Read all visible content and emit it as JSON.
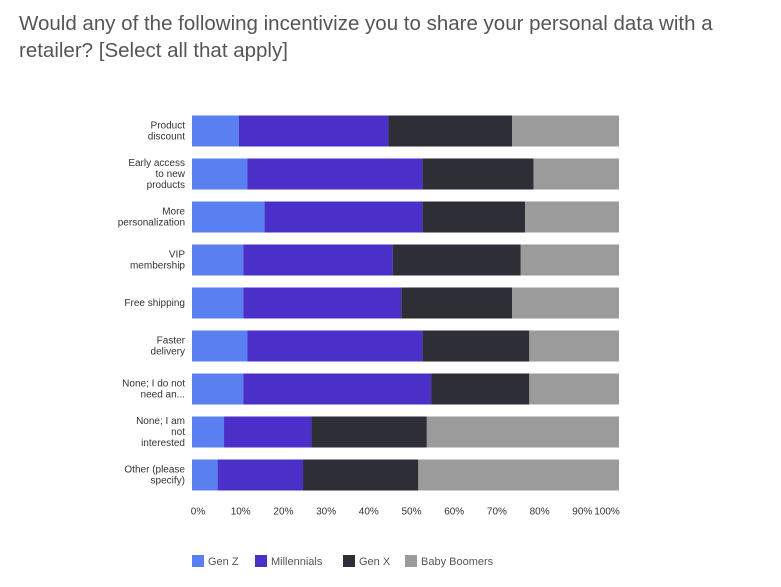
{
  "chart_data": {
    "type": "stacked_barh",
    "title": "Would any of the following incentivize you to share your personal data with a retailer? [Select all that apply]",
    "categories": [
      "Product\ndiscount",
      "Early access\nto new\nproducts",
      "More\npersonalization",
      "VIP\nmembership",
      "Free shipping",
      "Faster\ndelivery",
      "None; I do not\nneed an...",
      "None; I am\nnot\ninterested",
      "Other (please\nspecify)"
    ],
    "series": [
      {
        "name": "Gen Z",
        "color": "#5a7ff0",
        "values": [
          11,
          13,
          17,
          12,
          12,
          13,
          12,
          7.5,
          6
        ]
      },
      {
        "name": "Millennials",
        "color": "#4a2fc8",
        "values": [
          35,
          41,
          37,
          35,
          37,
          41,
          44,
          20.5,
          20
        ]
      },
      {
        "name": "Gen X",
        "color": "#2e2e36",
        "values": [
          29,
          26,
          24,
          30,
          26,
          25,
          23,
          27,
          27
        ]
      },
      {
        "name": "Baby Boomers",
        "color": "#9b9b9b",
        "values": [
          25,
          20,
          22,
          23,
          25,
          21,
          21,
          45,
          47
        ]
      }
    ],
    "xlim": [
      0,
      100
    ],
    "xticks": [
      {
        "value": 0,
        "label": "0%"
      },
      {
        "value": 10,
        "label": "10%"
      },
      {
        "value": 20,
        "label": "20%"
      },
      {
        "value": 30,
        "label": "30%"
      },
      {
        "value": 40,
        "label": "40%"
      },
      {
        "value": 50,
        "label": "50%"
      },
      {
        "value": 60,
        "label": "60%"
      },
      {
        "value": 70,
        "label": "70%"
      },
      {
        "value": 80,
        "label": "80%"
      },
      {
        "value": 90,
        "label": "90%"
      },
      {
        "value": 100,
        "label": "100%"
      }
    ],
    "legend": "bottom"
  }
}
